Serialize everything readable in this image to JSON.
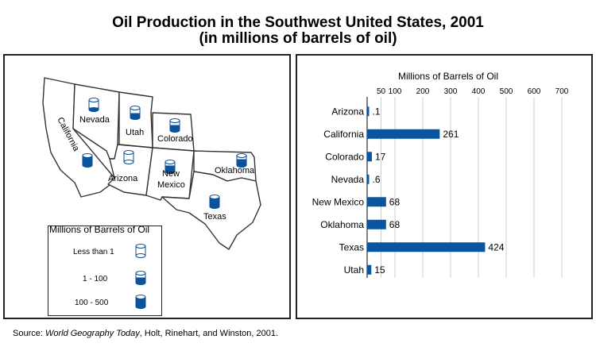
{
  "title_line1": "Oil Production in the Southwest United States, 2001",
  "title_line2": "(in millions of barrels of oil)",
  "source": {
    "prefix": "Source: ",
    "italic": "World Geography Today",
    "suffix": ", Holt, Rinehart, and Winston, 2001."
  },
  "map": {
    "states": {
      "nevada": "Nevada",
      "utah": "Utah",
      "colorado": "Colorado",
      "california": "California",
      "arizona": "Arizona",
      "new_mexico_1": "New",
      "new_mexico_2": "Mexico",
      "oklahoma": "Oklahoma",
      "texas": "Texas"
    },
    "legend": {
      "title": "Millions of Barrels of Oil",
      "items": [
        "Less than 1",
        "1 - 100",
        "100 - 500"
      ]
    }
  },
  "chart_data": {
    "type": "bar",
    "orientation": "horizontal",
    "title": "Millions of Barrels of Oil",
    "categories": [
      "Arizona",
      "California",
      "Colorado",
      "Nevada",
      "New Mexico",
      "Oklahoma",
      "Texas",
      "Utah"
    ],
    "values": [
      0.1,
      261,
      17,
      0.6,
      68,
      68,
      424,
      15
    ],
    "value_labels": [
      ".1",
      "261",
      "17",
      ".6",
      "68",
      "68",
      "424",
      "15"
    ],
    "xticks": [
      50,
      100,
      200,
      300,
      400,
      500,
      600,
      700
    ],
    "xlim": [
      0,
      700
    ],
    "grid": true,
    "bar_color": "#0a55a0"
  }
}
